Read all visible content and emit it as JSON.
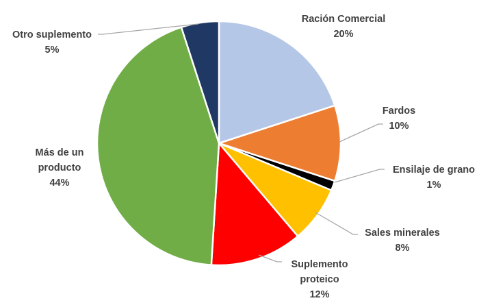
{
  "chart_data": {
    "type": "pie",
    "title": "",
    "start_angle_deg": 0,
    "direction": "clockwise",
    "slices": [
      {
        "label_lines": [
          "Ración Comercial"
        ],
        "value": 20,
        "value_label": "20%",
        "color": "#b4c7e7"
      },
      {
        "label_lines": [
          "Fardos"
        ],
        "value": 10,
        "value_label": "10%",
        "color": "#ed7d31"
      },
      {
        "label_lines": [
          "Ensilaje de grano"
        ],
        "value": 1.3,
        "value_label": "1%",
        "color": "#000000"
      },
      {
        "label_lines": [
          "Sales minerales"
        ],
        "value": 7.5,
        "value_label": "8%",
        "color": "#ffc000"
      },
      {
        "label_lines": [
          "Suplemento",
          "proteico"
        ],
        "value": 12.2,
        "value_label": "12%",
        "color": "#ff0000"
      },
      {
        "label_lines": [
          "Más de un",
          "producto"
        ],
        "value": 44,
        "value_label": "44%",
        "color": "#70ad47"
      },
      {
        "label_lines": [
          "Otro suplemento"
        ],
        "value": 5,
        "value_label": "5%",
        "color": "#203864"
      }
    ],
    "legend": "none",
    "grid": false
  }
}
